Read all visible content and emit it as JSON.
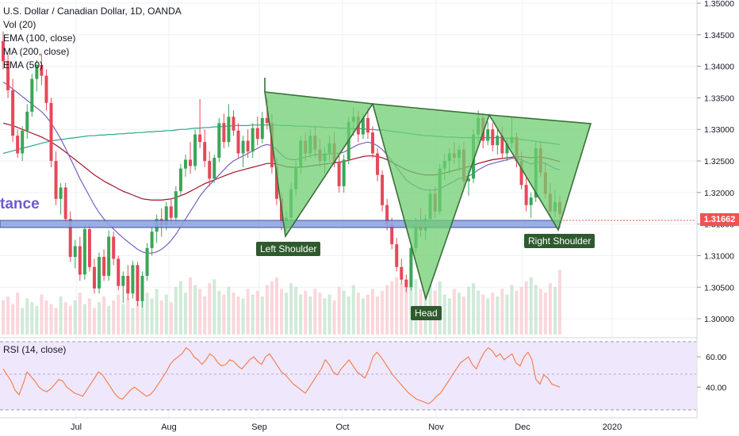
{
  "header": {
    "title": "U.S. Dollar / Canadian Dollar, 1D, OANDA",
    "studies": [
      "Vol (20)",
      "EMA (100, close)",
      "MA (200, close)",
      "EMA (50)"
    ]
  },
  "annotations": {
    "resistance_label": "tance",
    "left_shoulder": "Left Shoulder",
    "head": "Head",
    "right_shoulder": "Right Shoulder"
  },
  "price_axis": {
    "ticks": [
      "1.30000",
      "1.30500",
      "1.31000",
      "1.31500",
      "1.32000",
      "1.32500",
      "1.33000",
      "1.33500",
      "1.34000",
      "1.34500",
      "1.35000"
    ],
    "last_price": "1.31662"
  },
  "rsi": {
    "label": "RSI (14, close)",
    "ticks": [
      "40.00",
      "60.00"
    ],
    "values": [
      52,
      48,
      44,
      38,
      35,
      42,
      50,
      47,
      44,
      40,
      38,
      37,
      39,
      42,
      45,
      44,
      40,
      38,
      36,
      35,
      34,
      38,
      42,
      46,
      50,
      48,
      44,
      40,
      36,
      33,
      32,
      35,
      38,
      40,
      38,
      36,
      34,
      35,
      38,
      42,
      46,
      50,
      55,
      58,
      60,
      62,
      66,
      64,
      60,
      58,
      55,
      58,
      62,
      60,
      56,
      54,
      55,
      58,
      57,
      54,
      52,
      55,
      58,
      60,
      57,
      55,
      60,
      62,
      58,
      54,
      50,
      48,
      45,
      42,
      40,
      38,
      36,
      40,
      44,
      48,
      52,
      58,
      55,
      50,
      48,
      52,
      55,
      58,
      54,
      50,
      48,
      46,
      52,
      60,
      63,
      60,
      56,
      52,
      48,
      45,
      42,
      39,
      36,
      34,
      32,
      31,
      30,
      29,
      31,
      34,
      36,
      40,
      44,
      48,
      52,
      56,
      58,
      60,
      55,
      52,
      58,
      63,
      66,
      64,
      60,
      62,
      58,
      60,
      62,
      56,
      54,
      60,
      63,
      58,
      45,
      42,
      48,
      46,
      42,
      41,
      40
    ],
    "colors": {
      "line": "#f5794a",
      "band_fill": "#efe7fb"
    }
  },
  "time_axis": {
    "labels": [
      "Jul",
      "Aug",
      "Sep",
      "Oct",
      "Nov",
      "Dec",
      "2020"
    ]
  },
  "chart_data": {
    "type": "candlestick",
    "title": "U.S. Dollar / Canadian Dollar, 1D, OANDA",
    "y_range": [
      1.2975,
      1.3505
    ],
    "bars": [
      [
        1.344,
        1.3455,
        1.3395,
        1.3408
      ],
      [
        1.3408,
        1.342,
        1.335,
        1.3362
      ],
      [
        1.3362,
        1.338,
        1.328,
        1.329
      ],
      [
        1.329,
        1.33,
        1.3255,
        1.3262
      ],
      [
        1.3262,
        1.3305,
        1.325,
        1.3298
      ],
      [
        1.3298,
        1.334,
        1.3285,
        1.3328
      ],
      [
        1.3328,
        1.3388,
        1.332,
        1.338
      ],
      [
        1.338,
        1.341,
        1.336,
        1.3402
      ],
      [
        1.3402,
        1.342,
        1.337,
        1.3385
      ],
      [
        1.3385,
        1.3395,
        1.333,
        1.3342
      ],
      [
        1.3342,
        1.335,
        1.324,
        1.325
      ],
      [
        1.325,
        1.3265,
        1.318,
        1.319
      ],
      [
        1.319,
        1.3215,
        1.3165,
        1.3208
      ],
      [
        1.3208,
        1.3215,
        1.315,
        1.3158
      ],
      [
        1.3158,
        1.317,
        1.309,
        1.3098
      ],
      [
        1.3098,
        1.3125,
        1.308,
        1.3115
      ],
      [
        1.3115,
        1.313,
        1.306,
        1.307
      ],
      [
        1.307,
        1.315,
        1.3062,
        1.3142
      ],
      [
        1.3142,
        1.315,
        1.3075,
        1.3082
      ],
      [
        1.3082,
        1.3095,
        1.304,
        1.3048
      ],
      [
        1.3048,
        1.3105,
        1.304,
        1.3098
      ],
      [
        1.3098,
        1.311,
        1.306,
        1.3068
      ],
      [
        1.3068,
        1.314,
        1.306,
        1.313
      ],
      [
        1.313,
        1.3138,
        1.3085,
        1.3095
      ],
      [
        1.3095,
        1.31,
        1.3045,
        1.3052
      ],
      [
        1.3052,
        1.3075,
        1.3025,
        1.3068
      ],
      [
        1.3068,
        1.3085,
        1.303,
        1.304
      ],
      [
        1.304,
        1.3092,
        1.3032,
        1.3085
      ],
      [
        1.3085,
        1.309,
        1.302,
        1.3028
      ],
      [
        1.3028,
        1.3075,
        1.3018,
        1.3068
      ],
      [
        1.3068,
        1.312,
        1.306,
        1.3112
      ],
      [
        1.3112,
        1.3145,
        1.31,
        1.3138
      ],
      [
        1.3138,
        1.3165,
        1.312,
        1.3158
      ],
      [
        1.3158,
        1.3175,
        1.313,
        1.3148
      ],
      [
        1.3148,
        1.3185,
        1.314,
        1.3178
      ],
      [
        1.3178,
        1.319,
        1.315,
        1.316
      ],
      [
        1.316,
        1.321,
        1.315,
        1.3202
      ],
      [
        1.3202,
        1.3245,
        1.3195,
        1.3238
      ],
      [
        1.3238,
        1.326,
        1.3225,
        1.3252
      ],
      [
        1.3252,
        1.328,
        1.323,
        1.3242
      ],
      [
        1.3242,
        1.33,
        1.3235,
        1.3292
      ],
      [
        1.3292,
        1.3348,
        1.327,
        1.328
      ],
      [
        1.328,
        1.33,
        1.324,
        1.325
      ],
      [
        1.325,
        1.3265,
        1.321,
        1.3222
      ],
      [
        1.3222,
        1.326,
        1.3215,
        1.3255
      ],
      [
        1.3255,
        1.3318,
        1.3248,
        1.331
      ],
      [
        1.331,
        1.3325,
        1.327,
        1.328
      ],
      [
        1.328,
        1.334,
        1.3272,
        1.332
      ],
      [
        1.332,
        1.333,
        1.329,
        1.3298
      ],
      [
        1.3298,
        1.331,
        1.3255,
        1.3262
      ],
      [
        1.3262,
        1.329,
        1.324,
        1.3282
      ],
      [
        1.3282,
        1.33,
        1.3255,
        1.3265
      ],
      [
        1.3265,
        1.331,
        1.3255,
        1.3302
      ],
      [
        1.3302,
        1.332,
        1.3275,
        1.3285
      ],
      [
        1.3285,
        1.3328,
        1.3278,
        1.3318
      ],
      [
        1.3318,
        1.335,
        1.33,
        1.331
      ],
      [
        1.331,
        1.3325,
        1.323,
        1.324
      ],
      [
        1.324,
        1.3255,
        1.318,
        1.319
      ],
      [
        1.319,
        1.32,
        1.314,
        1.3152
      ],
      [
        1.3152,
        1.317,
        1.3138,
        1.316
      ],
      [
        1.316,
        1.3215,
        1.315,
        1.3205
      ],
      [
        1.3205,
        1.325,
        1.3195,
        1.324
      ],
      [
        1.324,
        1.329,
        1.323,
        1.3282
      ],
      [
        1.3282,
        1.3295,
        1.325,
        1.3262
      ],
      [
        1.3262,
        1.33,
        1.3255,
        1.329
      ],
      [
        1.329,
        1.3305,
        1.3255,
        1.3268
      ],
      [
        1.3268,
        1.3285,
        1.324,
        1.325
      ],
      [
        1.325,
        1.3272,
        1.323,
        1.3262
      ],
      [
        1.3262,
        1.329,
        1.325,
        1.3278
      ],
      [
        1.3278,
        1.3295,
        1.324,
        1.3248
      ],
      [
        1.3248,
        1.3262,
        1.32,
        1.321
      ],
      [
        1.321,
        1.326,
        1.32,
        1.3252
      ],
      [
        1.3252,
        1.332,
        1.3245,
        1.3312
      ],
      [
        1.3312,
        1.3335,
        1.329,
        1.332
      ],
      [
        1.332,
        1.333,
        1.328,
        1.3292
      ],
      [
        1.3292,
        1.3325,
        1.3285,
        1.3318
      ],
      [
        1.3318,
        1.3335,
        1.3285,
        1.3295
      ],
      [
        1.3295,
        1.3305,
        1.3255,
        1.3262
      ],
      [
        1.3262,
        1.327,
        1.3218,
        1.3228
      ],
      [
        1.3228,
        1.3235,
        1.317,
        1.318
      ],
      [
        1.318,
        1.319,
        1.314,
        1.315
      ],
      [
        1.315,
        1.316,
        1.311,
        1.3118
      ],
      [
        1.3118,
        1.3128,
        1.3075,
        1.3082
      ],
      [
        1.3082,
        1.3095,
        1.3055,
        1.3062
      ],
      [
        1.3062,
        1.307,
        1.3042,
        1.305
      ],
      [
        1.305,
        1.312,
        1.3045,
        1.3112
      ],
      [
        1.3112,
        1.316,
        1.3105,
        1.315
      ],
      [
        1.315,
        1.3175,
        1.313,
        1.314
      ],
      [
        1.314,
        1.3165,
        1.3125,
        1.3158
      ],
      [
        1.3158,
        1.3205,
        1.315,
        1.3198
      ],
      [
        1.3198,
        1.321,
        1.316,
        1.317
      ],
      [
        1.317,
        1.3245,
        1.3165,
        1.3238
      ],
      [
        1.3238,
        1.3262,
        1.322,
        1.325
      ],
      [
        1.325,
        1.327,
        1.323,
        1.3262
      ],
      [
        1.3262,
        1.328,
        1.3245,
        1.3255
      ],
      [
        1.3255,
        1.3275,
        1.3235,
        1.3268
      ],
      [
        1.3268,
        1.328,
        1.321,
        1.3218
      ],
      [
        1.3218,
        1.3235,
        1.3195,
        1.3222
      ],
      [
        1.3222,
        1.33,
        1.3215,
        1.3292
      ],
      [
        1.3292,
        1.333,
        1.328,
        1.3318
      ],
      [
        1.3318,
        1.3325,
        1.327,
        1.3282
      ],
      [
        1.3282,
        1.3312,
        1.3275,
        1.33
      ],
      [
        1.33,
        1.331,
        1.3265,
        1.3275
      ],
      [
        1.3275,
        1.33,
        1.326,
        1.329
      ],
      [
        1.329,
        1.3305,
        1.3255,
        1.3262
      ],
      [
        1.3262,
        1.3285,
        1.325,
        1.3278
      ],
      [
        1.3278,
        1.332,
        1.327,
        1.3288
      ],
      [
        1.3288,
        1.3295,
        1.324,
        1.325
      ],
      [
        1.325,
        1.3265,
        1.3205,
        1.3212
      ],
      [
        1.3212,
        1.3225,
        1.317,
        1.318
      ],
      [
        1.318,
        1.32,
        1.316,
        1.3192
      ],
      [
        1.3192,
        1.328,
        1.3185,
        1.327
      ],
      [
        1.327,
        1.3282,
        1.3225,
        1.3232
      ],
      [
        1.3232,
        1.3248,
        1.319,
        1.3198
      ],
      [
        1.3198,
        1.3215,
        1.316,
        1.317
      ],
      [
        1.317,
        1.3205,
        1.316,
        1.3185
      ],
      [
        1.3185,
        1.3195,
        1.3158,
        1.3166
      ]
    ],
    "volume": [
      0.18,
      0.2,
      0.16,
      0.22,
      0.14,
      0.19,
      0.17,
      0.15,
      0.21,
      0.18,
      0.16,
      0.14,
      0.2,
      0.17,
      0.15,
      0.18,
      0.22,
      0.16,
      0.19,
      0.14,
      0.17,
      0.2,
      0.15,
      0.18,
      0.21,
      0.16,
      0.19,
      0.14,
      0.17,
      0.2,
      0.22,
      0.19,
      0.24,
      0.18,
      0.21,
      0.17,
      0.25,
      0.28,
      0.22,
      0.3,
      0.26,
      0.24,
      0.2,
      0.27,
      0.29,
      0.23,
      0.21,
      0.25,
      0.22,
      0.2,
      0.19,
      0.24,
      0.21,
      0.23,
      0.2,
      0.26,
      0.28,
      0.3,
      0.24,
      0.22,
      0.27,
      0.25,
      0.21,
      0.23,
      0.2,
      0.24,
      0.22,
      0.19,
      0.21,
      0.18,
      0.25,
      0.23,
      0.2,
      0.26,
      0.22,
      0.19,
      0.21,
      0.24,
      0.2,
      0.23,
      0.26,
      0.28,
      0.3,
      0.27,
      0.25,
      0.32,
      0.29,
      0.24,
      0.22,
      0.26,
      0.23,
      0.28,
      0.21,
      0.19,
      0.24,
      0.22,
      0.2,
      0.25,
      0.27,
      0.23,
      0.21,
      0.19,
      0.22,
      0.2,
      0.24,
      0.21,
      0.26,
      0.23,
      0.25,
      0.28,
      0.3,
      0.26,
      0.24,
      0.22,
      0.27,
      0.25,
      0.34
    ],
    "ema50": [
      1.3375,
      1.337,
      1.3364,
      1.3358,
      1.3352,
      1.3346,
      1.334,
      1.3334,
      1.3328,
      1.332,
      1.331,
      1.3298,
      1.3285,
      1.327,
      1.3254,
      1.3238,
      1.3222,
      1.3208,
      1.3194,
      1.318,
      1.3168,
      1.3158,
      1.315,
      1.3142,
      1.3135,
      1.3128,
      1.3122,
      1.3116,
      1.311,
      1.3106,
      1.3104,
      1.3104,
      1.3106,
      1.311,
      1.3116,
      1.3124,
      1.3134,
      1.3146,
      1.3158,
      1.317,
      1.3182,
      1.3194,
      1.3204,
      1.3212,
      1.322,
      1.3228,
      1.3236,
      1.3244,
      1.325,
      1.3254,
      1.3258,
      1.3262,
      1.3266,
      1.327,
      1.3274,
      1.3276,
      1.3274,
      1.3268,
      1.326,
      1.3254,
      1.3252,
      1.3252,
      1.3254,
      1.3256,
      1.3258,
      1.326,
      1.326,
      1.326,
      1.3261,
      1.3262,
      1.3262,
      1.3264,
      1.3268,
      1.3272,
      1.3276,
      1.3278,
      1.328,
      1.3278,
      1.3274,
      1.3268,
      1.326,
      1.325,
      1.324,
      1.323,
      1.322,
      1.3214,
      1.321,
      1.3206,
      1.3204,
      1.3204,
      1.3204,
      1.3206,
      1.321,
      1.3214,
      1.3218,
      1.3222,
      1.3224,
      1.3226,
      1.323,
      1.3236,
      1.324,
      1.3244,
      1.3246,
      1.3248,
      1.325,
      1.3252,
      1.3254,
      1.3254,
      1.3252,
      1.3248,
      1.3245,
      1.3248,
      1.3248,
      1.3246,
      1.3242,
      1.3238,
      1.3236
    ],
    "ema100": [
      1.331,
      1.3308,
      1.3306,
      1.3303,
      1.33,
      1.3297,
      1.3294,
      1.3291,
      1.3288,
      1.3284,
      1.328,
      1.3275,
      1.327,
      1.3264,
      1.3258,
      1.3252,
      1.3246,
      1.324,
      1.3234,
      1.3228,
      1.3223,
      1.3218,
      1.3214,
      1.321,
      1.3206,
      1.3202,
      1.3199,
      1.3196,
      1.3193,
      1.319,
      1.3189,
      1.3188,
      1.3188,
      1.3188,
      1.3189,
      1.319,
      1.3192,
      1.3195,
      1.3198,
      1.3202,
      1.3206,
      1.321,
      1.3214,
      1.3217,
      1.322,
      1.3223,
      1.3226,
      1.3229,
      1.3232,
      1.3234,
      1.3236,
      1.3238,
      1.324,
      1.3242,
      1.3244,
      1.3246,
      1.3246,
      1.3245,
      1.3243,
      1.3241,
      1.324,
      1.324,
      1.324,
      1.3241,
      1.3242,
      1.3243,
      1.3244,
      1.3245,
      1.3246,
      1.3247,
      1.3248,
      1.3249,
      1.3251,
      1.3253,
      1.3255,
      1.3257,
      1.3258,
      1.3258,
      1.3257,
      1.3255,
      1.3252,
      1.3248,
      1.3244,
      1.324,
      1.3236,
      1.3233,
      1.3231,
      1.3229,
      1.3228,
      1.3228,
      1.3228,
      1.3229,
      1.3231,
      1.3233,
      1.3235,
      1.3237,
      1.3239,
      1.3241,
      1.3243,
      1.3246,
      1.3248,
      1.325,
      1.3252,
      1.3253,
      1.3254,
      1.3255,
      1.3256,
      1.3257,
      1.3257,
      1.3256,
      1.3255,
      1.3256,
      1.3256,
      1.3255,
      1.3253,
      1.3251,
      1.3249
    ],
    "ma200": [
      1.3262,
      1.3264,
      1.3266,
      1.3268,
      1.327,
      1.3272,
      1.3274,
      1.3276,
      1.3278,
      1.328,
      1.3282,
      1.3283,
      1.3284,
      1.3285,
      1.3286,
      1.3287,
      1.3288,
      1.3289,
      1.329,
      1.329,
      1.3291,
      1.3291,
      1.3292,
      1.3292,
      1.3293,
      1.3293,
      1.3294,
      1.3294,
      1.3295,
      1.3295,
      1.3296,
      1.3296,
      1.3297,
      1.3297,
      1.3298,
      1.3298,
      1.3299,
      1.33,
      1.33,
      1.3301,
      1.3302,
      1.3302,
      1.3303,
      1.3303,
      1.3304,
      1.3304,
      1.3305,
      1.3305,
      1.3306,
      1.3306,
      1.3306,
      1.3306,
      1.3307,
      1.3307,
      1.3307,
      1.3307,
      1.3307,
      1.3307,
      1.3306,
      1.3306,
      1.3306,
      1.3305,
      1.3305,
      1.3305,
      1.3304,
      1.3304,
      1.3304,
      1.3303,
      1.3303,
      1.3303,
      1.3302,
      1.3302,
      1.3302,
      1.3301,
      1.3301,
      1.3301,
      1.33,
      1.33,
      1.3299,
      1.3299,
      1.3298,
      1.3297,
      1.3296,
      1.3295,
      1.3294,
      1.3293,
      1.3292,
      1.3291,
      1.329,
      1.329,
      1.3289,
      1.3289,
      1.3288,
      1.3288,
      1.3288,
      1.3287,
      1.3287,
      1.3287,
      1.3287,
      1.3287,
      1.3287,
      1.3287,
      1.3287,
      1.3287,
      1.3287,
      1.3286,
      1.3286,
      1.3285,
      1.3284,
      1.3283,
      1.3282,
      1.3281,
      1.328,
      1.3279,
      1.3278,
      1.3277,
      1.3276
    ],
    "pattern": {
      "neckline": [
        1.3168,
        1.3158
      ],
      "left_shoulder_low": 1.314,
      "head_low": 1.3042,
      "right_shoulder_low": 1.3155
    }
  },
  "colors": {
    "up": "#26a69a",
    "down": "#ef5350",
    "up_candle": "#3aa657",
    "down_candle": "#e5495a",
    "triangle_fill": "#6fcf72",
    "triangle_stroke": "#3b6e3a",
    "neckline_fill": "#8fa6e0",
    "neckline_stroke": "#2c3fa0",
    "ema50": "#7b5fbf",
    "ema100": "#a0142a",
    "ma200": "#27a98c"
  }
}
